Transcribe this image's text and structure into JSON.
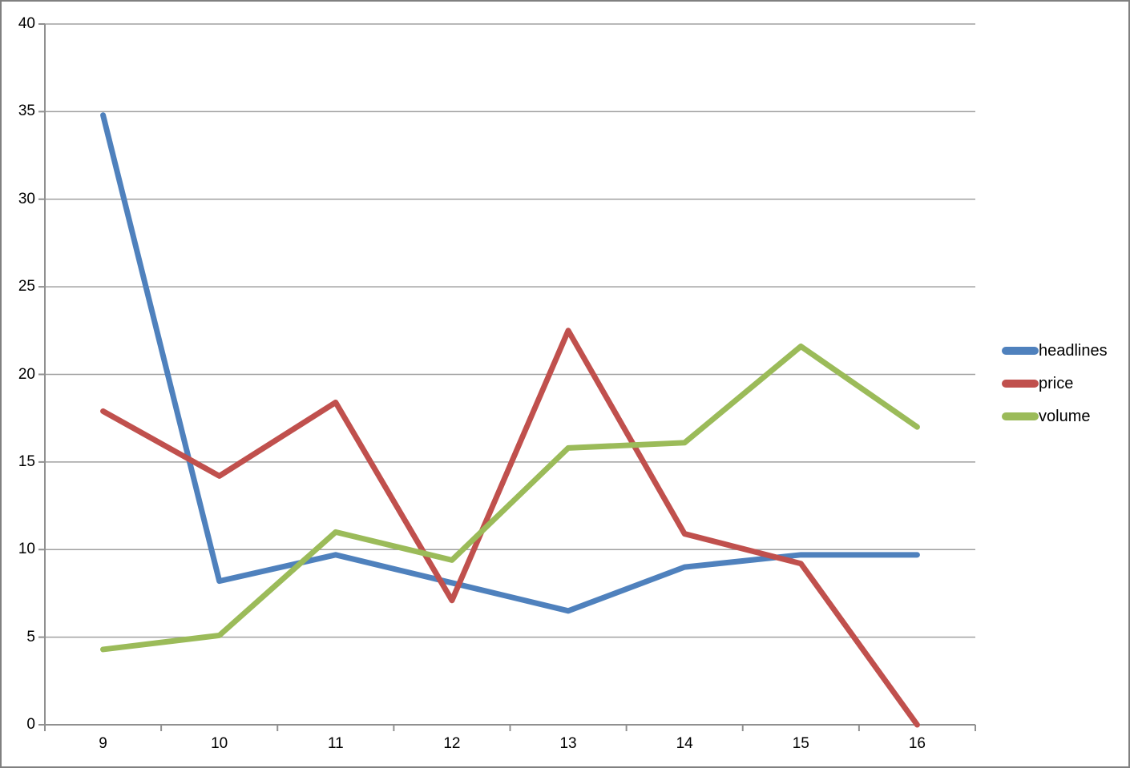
{
  "chart_data": {
    "type": "line",
    "title": "",
    "xlabel": "",
    "ylabel": "",
    "x": [
      9,
      10,
      11,
      12,
      13,
      14,
      15,
      16
    ],
    "x_tick_labels": [
      "9",
      "10",
      "11",
      "12",
      "13",
      "14",
      "15",
      "16"
    ],
    "series": [
      {
        "name": "headlines",
        "color": "#4F81BD",
        "values": [
          34.8,
          8.2,
          9.7,
          8.1,
          6.5,
          9.0,
          9.7,
          9.7
        ]
      },
      {
        "name": "price",
        "color": "#C0504D",
        "values": [
          17.9,
          14.2,
          18.4,
          7.1,
          22.5,
          10.9,
          9.2,
          0
        ]
      },
      {
        "name": "volume",
        "color": "#9BBB59",
        "values": [
          4.3,
          5.1,
          11.0,
          9.4,
          15.8,
          16.1,
          21.6,
          17.0
        ]
      }
    ],
    "ylim": [
      0,
      40
    ],
    "y_ticks": [
      0,
      5,
      10,
      15,
      20,
      25,
      30,
      35,
      40
    ],
    "grid": "horizontal",
    "legend_position": "right"
  },
  "colors": {
    "background": "#FFFFFF",
    "window_border": "#808080",
    "gridline": "#A0A0A0",
    "axis": "#909090",
    "text": "#000000"
  }
}
